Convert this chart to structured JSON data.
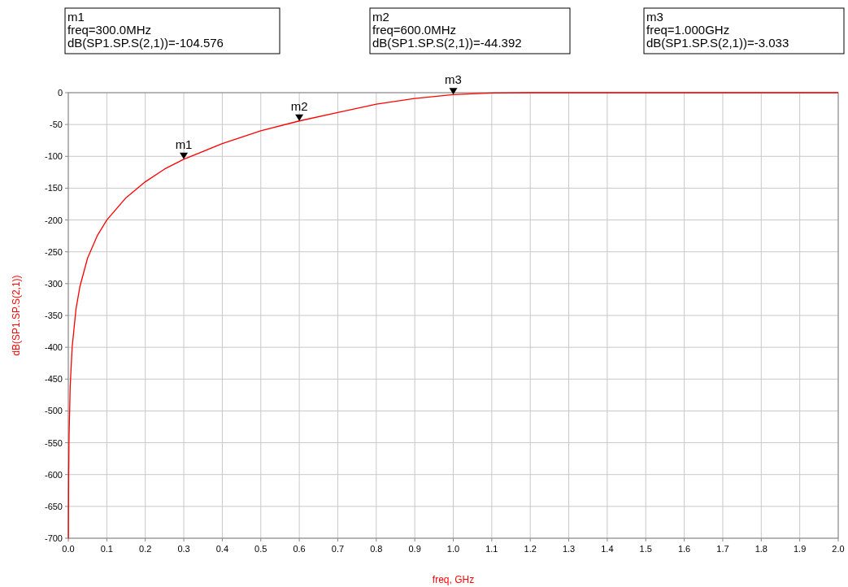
{
  "chart_data": {
    "type": "line",
    "xlabel": "freq, GHz",
    "ylabel": "dB(SP1.SP.S(2,1))",
    "x": [
      0,
      0.0003,
      0.0005,
      0.001,
      0.002,
      0.005,
      0.01,
      0.02,
      0.03,
      0.05,
      0.075,
      0.1,
      0.15,
      0.2,
      0.25,
      0.3,
      0.4,
      0.5,
      0.6,
      0.7,
      0.8,
      0.9,
      1.0,
      1.1,
      1.2,
      1.5,
      2.0
    ],
    "series": [
      {
        "color": "#ff0000",
        "values": [
          -700,
          -700,
          -660,
          -600,
          -540,
          -460,
          -400,
          -340,
          -305,
          -260,
          -225,
          -200,
          -165,
          -140,
          -120,
          -104.576,
          -80,
          -60,
          -44.392,
          -31,
          -18,
          -9,
          -3.033,
          -0.5,
          0,
          0,
          0
        ]
      }
    ],
    "xlim": [
      0,
      2
    ],
    "ylim": [
      -700,
      0
    ],
    "xticks": [
      {
        "value": 0,
        "label": "0.0"
      },
      {
        "value": 0.1,
        "label": "0.1"
      },
      {
        "value": 0.2,
        "label": "0.2"
      },
      {
        "value": 0.3,
        "label": "0.3"
      },
      {
        "value": 0.4,
        "label": "0.4"
      },
      {
        "value": 0.5,
        "label": "0.5"
      },
      {
        "value": 0.6,
        "label": "0.6"
      },
      {
        "value": 0.7,
        "label": "0.7"
      },
      {
        "value": 0.8,
        "label": "0.8"
      },
      {
        "value": 0.9,
        "label": "0.9"
      },
      {
        "value": 1,
        "label": "1.0"
      },
      {
        "value": 1.1,
        "label": "1.1"
      },
      {
        "value": 1.2,
        "label": "1.2"
      },
      {
        "value": 1.3,
        "label": "1.3"
      },
      {
        "value": 1.4,
        "label": "1.4"
      },
      {
        "value": 1.5,
        "label": "1.5"
      },
      {
        "value": 1.6,
        "label": "1.6"
      },
      {
        "value": 1.7,
        "label": "1.7"
      },
      {
        "value": 1.8,
        "label": "1.8"
      },
      {
        "value": 1.9,
        "label": "1.9"
      },
      {
        "value": 2,
        "label": "2.0"
      }
    ],
    "yticks": [
      -700,
      -650,
      -600,
      -550,
      -500,
      -450,
      -400,
      -350,
      -300,
      -250,
      -200,
      -150,
      -100,
      -50,
      0
    ],
    "grid": true,
    "marker": "none",
    "annotations": [
      {
        "text": "m1",
        "x": 0.3,
        "y": -104.576
      },
      {
        "text": "m2",
        "x": 0.6,
        "y": -44.392
      },
      {
        "text": "m3",
        "x": 1.0,
        "y": -3.033
      },
      "m1\nfreq=300.0MHz\ndB(SP1.SP.S(2,1))=-104.576",
      "m2\nfreq=600.0MHz\ndB(SP1.SP.S(2,1))=-44.392",
      "m3\nfreq=1.000GHz\ndB(SP1.SP.S(2,1))=-3.033"
    ]
  }
}
